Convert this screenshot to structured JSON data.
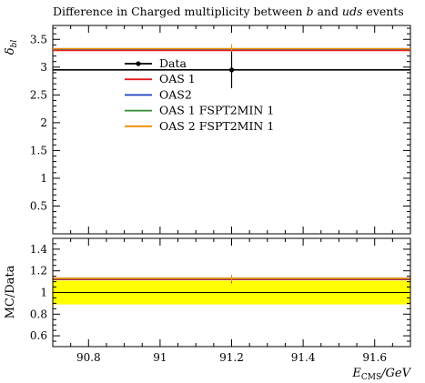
{
  "chart_data": [
    {
      "type": "line",
      "title": "Difference in Charged multiplicity between b and uds events",
      "title_parts": [
        "Difference in Charged multiplicity between ",
        "b",
        " and ",
        "uds",
        " events"
      ],
      "ylabel": "δ_bl",
      "ylabel_main": "δ",
      "ylabel_sub": "bl",
      "xlim": [
        90.7,
        91.7
      ],
      "ylim": [
        0,
        3.75
      ],
      "yticks": [
        0.5,
        1,
        1.5,
        2,
        2.5,
        3,
        3.5
      ],
      "ytick_labels": [
        "0.5",
        "1",
        "1.5",
        "2",
        "2.5",
        "3",
        "3.5"
      ],
      "legend_position": "upper-left",
      "grid": false,
      "data_point": {
        "name": "Data",
        "x": 91.2,
        "y": 2.95,
        "yerr": 0.33,
        "color": "#000000"
      },
      "series": [
        {
          "name": "OAS 1",
          "color": "#e41a1c",
          "y": 3.3
        },
        {
          "name": "OAS2",
          "color": "#1f3fbf",
          "y": 3.32
        },
        {
          "name": "OAS 1 FSPT2MIN 1",
          "color": "#2e8b2e",
          "y": 3.33
        },
        {
          "name": "OAS 2 FSPT2MIN 1",
          "color": "#f08a00",
          "y": 3.33
        }
      ]
    },
    {
      "type": "line",
      "title": "",
      "ylabel": "MC/Data",
      "xlabel": "E_CMS/GeV",
      "xlabel_main": "E",
      "xlabel_sub": "CMS",
      "xlabel_unit": "/GeV",
      "xlim": [
        90.7,
        91.7
      ],
      "ylim": [
        0.5,
        1.5
      ],
      "yticks": [
        0.6,
        0.8,
        1.0,
        1.2,
        1.4
      ],
      "ytick_labels": [
        "0.6",
        "0.8",
        "1",
        "1.2",
        "1.4"
      ],
      "xticks": [
        90.8,
        91.0,
        91.2,
        91.4,
        91.6
      ],
      "xtick_labels": [
        "90.8",
        "91",
        "91.2",
        "91.4",
        "91.6"
      ],
      "band": {
        "low": 0.89,
        "high": 1.11,
        "color": "#ffff00"
      },
      "reference": 1.0,
      "series": [
        {
          "name": "OAS 1",
          "color": "#e41a1c",
          "y": 1.12
        },
        {
          "name": "OAS2",
          "color": "#1f3fbf",
          "y": 1.125
        },
        {
          "name": "OAS 1 FSPT2MIN 1",
          "color": "#2e8b2e",
          "y": 1.13
        },
        {
          "name": "OAS 2 FSPT2MIN 1",
          "color": "#f08a00",
          "y": 1.13
        }
      ]
    }
  ]
}
